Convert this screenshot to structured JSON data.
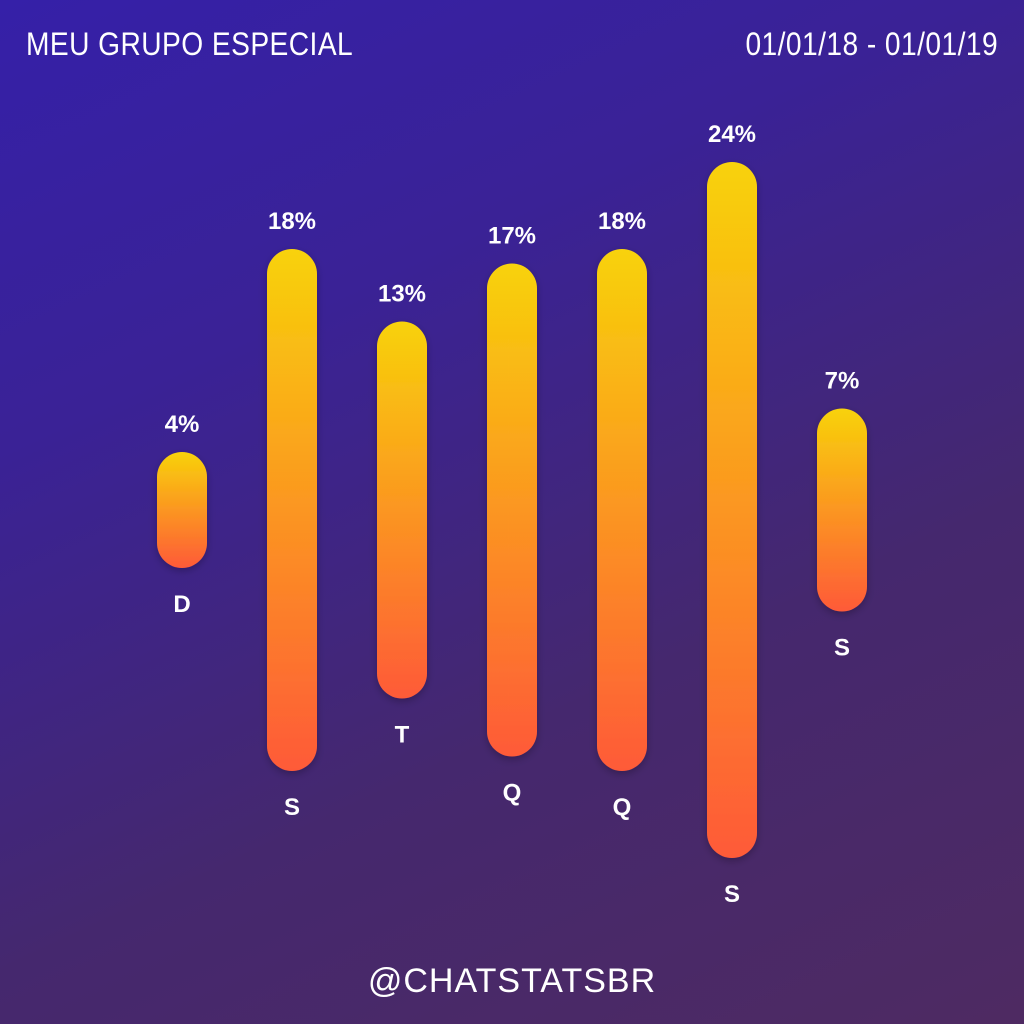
{
  "header": {
    "title": "MEU GRUPO ESPECIAL",
    "date_range": "01/01/18 - 01/01/19"
  },
  "footer": {
    "handle": "@CHATSTATSBR"
  },
  "colors": {
    "bar_top": "#f8d20a",
    "bar_bottom": "#fe5a38"
  },
  "chart_data": {
    "type": "bar",
    "categories": [
      "D",
      "S",
      "T",
      "Q",
      "Q",
      "S",
      "S"
    ],
    "values": [
      4,
      18,
      13,
      17,
      18,
      24,
      7
    ],
    "value_labels": [
      "4%",
      "18%",
      "13%",
      "17%",
      "18%",
      "24%",
      "7%"
    ],
    "unit": "%",
    "title": "MEU GRUPO ESPECIAL",
    "xlabel": "",
    "ylabel": "",
    "grid": false,
    "legend": "none"
  }
}
